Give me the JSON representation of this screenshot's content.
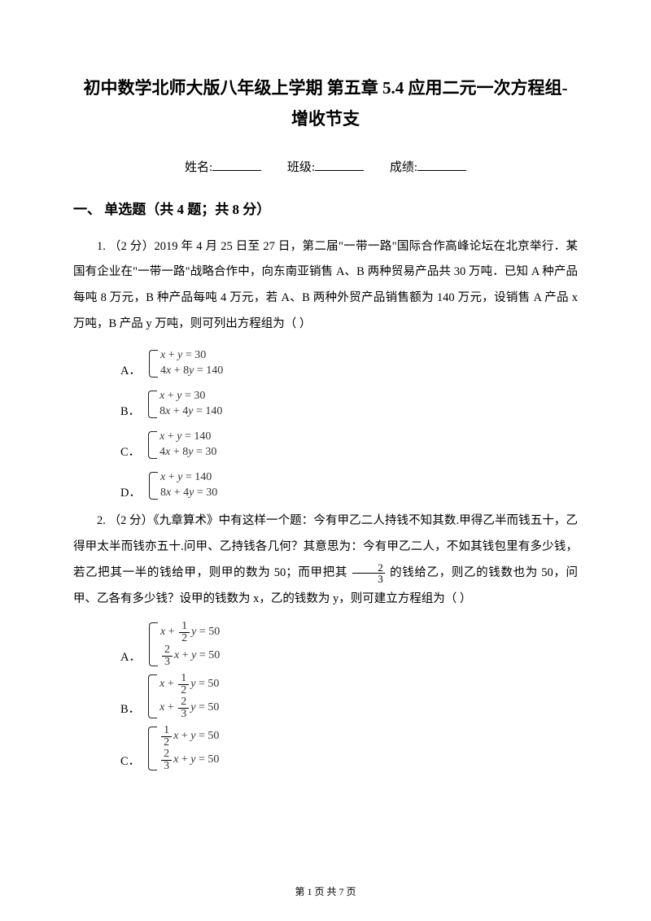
{
  "doc": {
    "title_line1": "初中数学北师大版八年级上学期 第五章 5.4 应用二元一次方程组-",
    "title_line2": "增收节支",
    "info": {
      "name_label": "姓名:",
      "class_label": "班级:",
      "score_label": "成绩:"
    },
    "section1": "一、 单选题（共 4 题；共 8 分）",
    "q1": {
      "text": "1.  （2 分）2019 年 4 月 25 日至 27 日，第二届\"一带一路\"国际合作高峰论坛在北京举行．某国有企业在\"一带一路\"战略合作中，向东南亚销售 A、B 两种贸易产品共 30 万吨．已知 A 种产品每吨 8 万元，B 种产品每吨 4 万元，若 A、B 两种外贸产品销售额为 140 万元，设销售 A 产品 x 万吨，B 产品 y 万吨，则可列出方程组为（    ）",
      "opts": {
        "A": {
          "e1": "x + y = 30",
          "e2": "4x + 8y = 140"
        },
        "B": {
          "e1": "x + y = 30",
          "e2": "8x + 4y = 140"
        },
        "C": {
          "e1": "x + y = 140",
          "e2": "4x + 8y = 30"
        },
        "D": {
          "e1": "x + y = 140",
          "e2": "8x + 4y = 30"
        }
      }
    },
    "q2": {
      "text_a": "2.  （2 分）《九章算术》中有这样一个题：今有甲乙二人持钱不知其数.甲得乙半而钱五十，乙得甲太半而钱亦五十.问甲、乙持钱各几何？其意思为：今有甲乙二人，不如其钱包里有多少钱，若乙把其一半的钱给甲，则甲的数为 50；而甲把其 ",
      "text_b": " 的钱给乙，则乙的钱数也为 50，问甲、乙各有多少钱？设甲的钱数为 x，乙的钱数为 y，则可建立方程组为（    ）",
      "frac": {
        "num": "2",
        "den": "3"
      },
      "opts": {
        "A": {
          "f1n": "1",
          "f1d": "2",
          "e1r": "y = 50",
          "f2n": "2",
          "f2d": "3",
          "e2l": "x +",
          "e2r": "x + y = 50"
        },
        "B": {
          "f1n": "1",
          "f1d": "2",
          "e1r": "y = 50",
          "f2n": "2",
          "f2d": "3",
          "e2r": "y = 50"
        },
        "C": {
          "f1n": "1",
          "f1d": "2",
          "e1r": "x + y = 50",
          "f2n": "2",
          "f2d": "3",
          "e2r": "x + y = 50"
        }
      }
    },
    "footer": "第 1 页 共 7 页"
  },
  "style": {
    "page_bg": "#ffffff",
    "text_color": "#000000",
    "eq_color": "#333333",
    "title_fontsize": 21,
    "body_fontsize": 14.5,
    "section_fontsize": 17,
    "footer_fontsize": 12,
    "line_height": 2.2
  }
}
